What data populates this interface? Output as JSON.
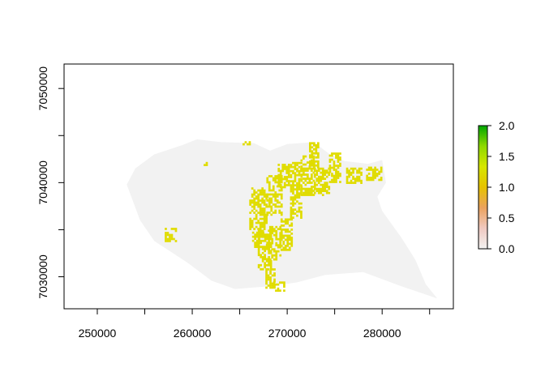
{
  "chart_data": {
    "type": "heatmap",
    "title": "",
    "xlabel": "",
    "ylabel": "",
    "xlim": [
      246500,
      287500
    ],
    "ylim": [
      7026600,
      7052600
    ],
    "xticks": [
      250000,
      260000,
      270000,
      280000
    ],
    "xtick_labels": [
      "250000",
      "260000",
      "270000",
      "280000"
    ],
    "yticks": [
      7030000,
      7040000,
      7050000
    ],
    "ytick_labels": [
      "7030000",
      "7040000",
      "7050000"
    ],
    "legend": {
      "placement": "right",
      "min": 0.0,
      "max": 2.0,
      "ticks": [
        0.0,
        0.5,
        1.0,
        1.5,
        2.0
      ],
      "tick_labels": [
        "0.0",
        "0.5",
        "1.0",
        "1.5",
        "2.0"
      ],
      "colors": [
        "#f2f2f2",
        "#f0c9c0",
        "#eba25e",
        "#e6c300",
        "#d7e600",
        "#8fd900",
        "#00a600"
      ]
    },
    "background_value": 0.0,
    "background_color": "#f2f2f2",
    "value_color": "#e0dc00",
    "region_outline": [
      [
        253100,
        7039800
      ],
      [
        254000,
        7041500
      ],
      [
        256000,
        7043000
      ],
      [
        259000,
        7044000
      ],
      [
        260500,
        7044600
      ],
      [
        263000,
        7044300
      ],
      [
        266500,
        7044200
      ],
      [
        268200,
        7043400
      ],
      [
        270000,
        7044100
      ],
      [
        272800,
        7044300
      ],
      [
        274500,
        7043000
      ],
      [
        276000,
        7042300
      ],
      [
        278500,
        7042000
      ],
      [
        280000,
        7042400
      ],
      [
        280400,
        7040000
      ],
      [
        279500,
        7038500
      ],
      [
        280000,
        7037000
      ],
      [
        282000,
        7034200
      ],
      [
        283500,
        7031800
      ],
      [
        284600,
        7029200
      ],
      [
        285800,
        7027700
      ],
      [
        282000,
        7029000
      ],
      [
        278000,
        7030500
      ],
      [
        274000,
        7030200
      ],
      [
        271000,
        7029400
      ],
      [
        268200,
        7029000
      ],
      [
        264500,
        7028700
      ],
      [
        262000,
        7029600
      ],
      [
        259500,
        7031500
      ],
      [
        256000,
        7033800
      ],
      [
        254500,
        7036000
      ]
    ],
    "value_patches": [
      {
        "x": [
          266000,
          267800
        ],
        "y": [
          7035000,
          7039500
        ],
        "value": 1.0
      },
      {
        "x": [
          267800,
          269300
        ],
        "y": [
          7036500,
          7040800
        ],
        "value": 1.0
      },
      {
        "x": [
          269000,
          270200
        ],
        "y": [
          7039500,
          7042000
        ],
        "value": 1.0
      },
      {
        "x": [
          270300,
          271500
        ],
        "y": [
          7036300,
          7042200
        ],
        "value": 1.0
      },
      {
        "x": [
          271400,
          272700
        ],
        "y": [
          7038800,
          7042900
        ],
        "value": 1.0
      },
      {
        "x": [
          272300,
          273300
        ],
        "y": [
          7041600,
          7044300
        ],
        "value": 1.0
      },
      {
        "x": [
          272800,
          274300
        ],
        "y": [
          7038800,
          7041600
        ],
        "value": 1.0
      },
      {
        "x": [
          274400,
          275600
        ],
        "y": [
          7040000,
          7043200
        ],
        "value": 1.0
      },
      {
        "x": [
          276200,
          277700
        ],
        "y": [
          7039900,
          7041600
        ],
        "value": 1.0
      },
      {
        "x": [
          278300,
          279900
        ],
        "y": [
          7040300,
          7041700
        ],
        "value": 1.0
      },
      {
        "x": [
          266900,
          268200
        ],
        "y": [
          7030800,
          7035000
        ],
        "value": 1.0
      },
      {
        "x": [
          266300,
          267800
        ],
        "y": [
          7033200,
          7034800
        ],
        "value": 1.0
      },
      {
        "x": [
          268100,
          269200
        ],
        "y": [
          7031800,
          7035400
        ],
        "value": 1.0
      },
      {
        "x": [
          269300,
          270400
        ],
        "y": [
          7032800,
          7036200
        ],
        "value": 1.0
      },
      {
        "x": [
          267700,
          268600
        ],
        "y": [
          7028800,
          7030900
        ],
        "value": 1.0
      },
      {
        "x": [
          268500,
          269600
        ],
        "y": [
          7028600,
          7029500
        ],
        "value": 1.0
      },
      {
        "x": [
          257100,
          258300
        ],
        "y": [
          7033800,
          7035200
        ],
        "value": 1.0
      },
      {
        "x": [
          261200,
          261800
        ],
        "y": [
          7041800,
          7042200
        ],
        "value": 1.0
      },
      {
        "x": [
          265300,
          266100
        ],
        "y": [
          7044000,
          7044400
        ],
        "value": 1.0
      }
    ]
  }
}
